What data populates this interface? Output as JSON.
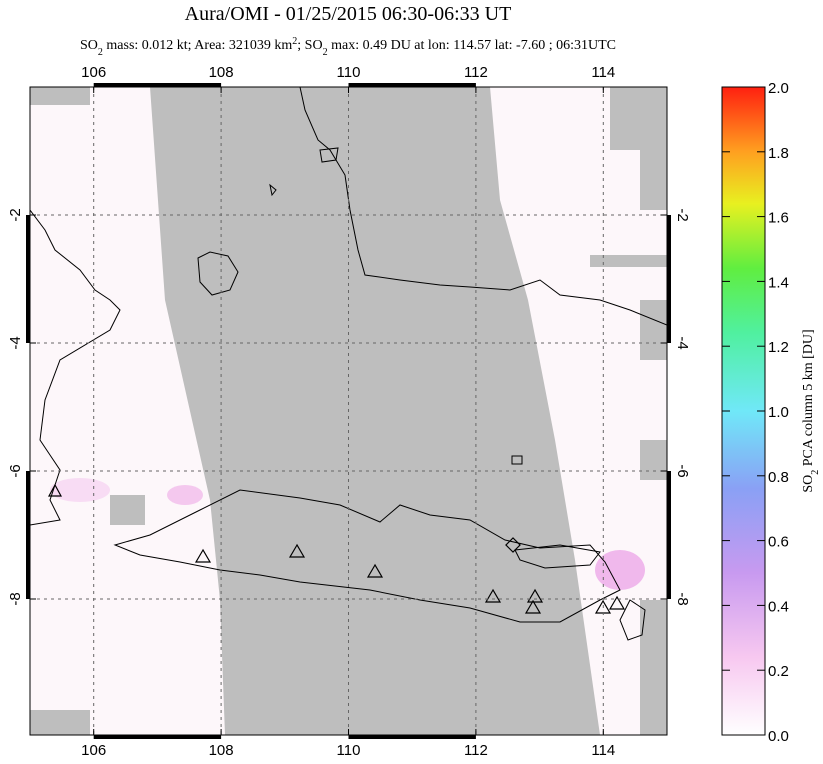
{
  "chart_data": {
    "type": "map",
    "title": "Aura/OMI - 01/25/2015 06:30-06:33 UT",
    "subtitle_parts": [
      "SO",
      "2",
      " mass: 0.012 kt; Area: 321039 km",
      "2",
      "; SO",
      "2",
      " max: 0.49 DU at lon: 114.57 lat: -7.60 ; 06:31UTC"
    ],
    "xlim": [
      105,
      115
    ],
    "xticks": [
      106,
      108,
      110,
      112,
      114
    ],
    "ylim": [
      -10.125,
      0
    ],
    "yticks": [
      -2,
      -4,
      -6,
      -8
    ],
    "grid": true,
    "colorbar": {
      "label_parts": [
        "SO",
        "2",
        " PCA column 5 km [DU]"
      ],
      "lim": [
        0,
        2
      ],
      "ticks": [
        {
          "value": 0,
          "label": "0.0"
        },
        {
          "value": 0.2,
          "label": "0.2"
        },
        {
          "value": 0.4,
          "label": "0.4"
        },
        {
          "value": 0.6,
          "label": "0.6"
        },
        {
          "value": 0.8,
          "label": "0.8"
        },
        {
          "value": 1,
          "label": "1.0"
        },
        {
          "value": 1.2,
          "label": "1.2"
        },
        {
          "value": 1.4,
          "label": "1.4"
        },
        {
          "value": 1.6,
          "label": "1.6"
        },
        {
          "value": 1.8,
          "label": "1.8"
        },
        {
          "value": 2,
          "label": "2.0"
        }
      ]
    }
  }
}
